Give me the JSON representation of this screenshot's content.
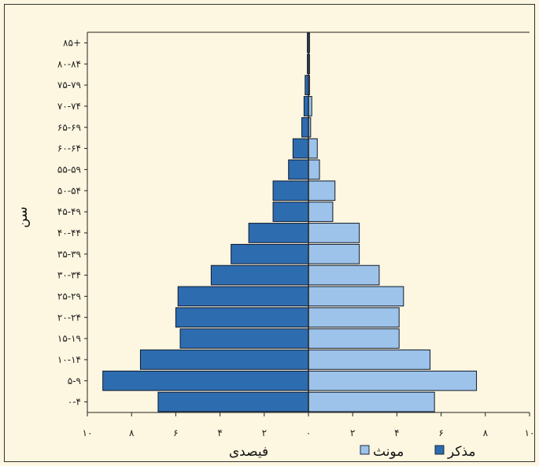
{
  "chart_data": {
    "type": "bar",
    "orientation": "horizontal",
    "subtype": "population-pyramid",
    "categories": [
      "۰-۴",
      "۵-۹",
      "۱۰-۱۴",
      "۱۵-۱۹",
      "۲۰-۲۴",
      "۲۵-۲۹",
      "۳۰-۳۴",
      "۳۵-۳۹",
      "۴۰-۴۴",
      "۴۵-۴۹",
      "۵۰-۵۴",
      "۵۵-۵۹",
      "۶۰-۶۴",
      "۶۵-۶۹",
      "۷۰-۷۴",
      "۷۵-۷۹",
      "۸۰-۸۴",
      "۸۵+"
    ],
    "series": [
      {
        "name": "مذکر",
        "side": "left",
        "color": "#2e6cb0",
        "values": [
          6.8,
          9.3,
          7.6,
          5.8,
          6.0,
          5.9,
          4.4,
          3.5,
          2.7,
          1.6,
          1.6,
          0.9,
          0.7,
          0.3,
          0.2,
          0.15,
          0.05,
          0.05
        ]
      },
      {
        "name": "مونث",
        "side": "right",
        "color": "#9ec3ea",
        "values": [
          5.7,
          7.6,
          5.5,
          4.1,
          4.1,
          4.3,
          3.2,
          2.3,
          2.3,
          1.1,
          1.2,
          0.5,
          0.4,
          0.1,
          0.15,
          0.05,
          0.05,
          0.05
        ]
      }
    ],
    "xlim": [
      -10,
      10
    ],
    "x_ticks": [
      -10,
      -8,
      -6,
      -4,
      -2,
      0,
      2,
      4,
      6,
      8,
      10
    ],
    "x_tick_labels": [
      "۱۰",
      "۸",
      "۶",
      "۴",
      "۲",
      "۰",
      "۲",
      "۴",
      "۶",
      "۸",
      "۱۰"
    ],
    "xlabel": "فیصدی",
    "ylabel": "سن",
    "legend_position": "bottom",
    "grid": false
  },
  "legend": {
    "male_label": "مذکر",
    "female_label": "مونث"
  }
}
